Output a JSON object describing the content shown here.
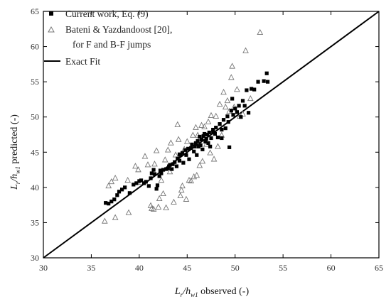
{
  "chart_data": {
    "type": "scatter",
    "xlabel": {
      "main": "L",
      "main_sub": "r",
      "denom": "/h",
      "denom_sub": "w1",
      "rest": " observed (-)"
    },
    "ylabel": {
      "main": "L",
      "main_sub": "r",
      "denom": "/h",
      "denom_sub": "w1",
      "rest": " predicted (-)"
    },
    "xlim": [
      30,
      65
    ],
    "ylim": [
      30,
      65
    ],
    "xticks": [
      30,
      35,
      40,
      45,
      50,
      55,
      60,
      65
    ],
    "yticks": [
      30,
      35,
      40,
      45,
      50,
      55,
      60,
      65
    ],
    "grid": false,
    "legend_position": "top-left",
    "series": [
      {
        "name": "Current work, Eq. (9)",
        "marker": "filled-square",
        "color": "#000000",
        "points": [
          [
            36.5,
            37.8
          ],
          [
            36.8,
            37.7
          ],
          [
            37.1,
            38.0
          ],
          [
            37.4,
            38.3
          ],
          [
            37.7,
            38.9
          ],
          [
            37.9,
            39.4
          ],
          [
            38.2,
            39.7
          ],
          [
            38.5,
            40.0
          ],
          [
            39.0,
            39.2
          ],
          [
            39.4,
            40.4
          ],
          [
            39.7,
            40.6
          ],
          [
            40.0,
            40.9
          ],
          [
            40.2,
            41.0
          ],
          [
            40.5,
            40.6
          ],
          [
            40.7,
            40.8
          ],
          [
            41.0,
            40.2
          ],
          [
            41.2,
            41.3
          ],
          [
            41.3,
            42.0
          ],
          [
            41.5,
            42.5
          ],
          [
            41.6,
            41.9
          ],
          [
            41.8,
            39.8
          ],
          [
            41.9,
            40.3
          ],
          [
            42.1,
            41.6
          ],
          [
            42.3,
            42.0
          ],
          [
            42.5,
            42.5
          ],
          [
            42.8,
            42.6
          ],
          [
            43.0,
            42.7
          ],
          [
            43.1,
            43.0
          ],
          [
            43.4,
            42.6
          ],
          [
            43.5,
            43.3
          ],
          [
            43.7,
            43.6
          ],
          [
            43.9,
            43.0
          ],
          [
            44.0,
            44.1
          ],
          [
            44.2,
            43.8
          ],
          [
            44.3,
            44.6
          ],
          [
            44.5,
            44.9
          ],
          [
            44.6,
            43.5
          ],
          [
            44.8,
            45.3
          ],
          [
            44.9,
            44.6
          ],
          [
            45.1,
            45.5
          ],
          [
            45.2,
            44.0
          ],
          [
            45.4,
            45.6
          ],
          [
            45.5,
            46.1
          ],
          [
            45.7,
            45.1
          ],
          [
            45.8,
            45.8
          ],
          [
            45.9,
            46.3
          ],
          [
            46.0,
            44.6
          ],
          [
            46.1,
            46.6
          ],
          [
            46.2,
            45.8
          ],
          [
            46.3,
            47.2
          ],
          [
            46.4,
            46.0
          ],
          [
            46.5,
            46.8
          ],
          [
            46.6,
            45.4
          ],
          [
            46.7,
            47.3
          ],
          [
            46.8,
            47.6
          ],
          [
            46.9,
            46.5
          ],
          [
            47.0,
            46.9
          ],
          [
            47.1,
            47.5
          ],
          [
            47.2,
            46.3
          ],
          [
            47.3,
            47.8
          ],
          [
            47.4,
            45.8
          ],
          [
            47.5,
            47.0
          ],
          [
            47.7,
            48.2
          ],
          [
            47.9,
            47.6
          ],
          [
            48.0,
            48.5
          ],
          [
            48.2,
            47.1
          ],
          [
            48.4,
            49.0
          ],
          [
            48.6,
            48.2
          ],
          [
            48.8,
            49.6
          ],
          [
            49.0,
            48.4
          ],
          [
            49.2,
            50.1
          ],
          [
            49.3,
            49.3
          ],
          [
            49.4,
            45.7
          ],
          [
            49.6,
            50.9
          ],
          [
            49.8,
            50.3
          ],
          [
            50.0,
            51.2
          ],
          [
            50.2,
            50.7
          ],
          [
            50.4,
            51.6
          ],
          [
            50.6,
            50.0
          ],
          [
            50.8,
            52.3
          ],
          [
            51.0,
            51.6
          ],
          [
            51.2,
            53.8
          ],
          [
            51.4,
            50.6
          ],
          [
            51.7,
            54.0
          ],
          [
            52.0,
            53.9
          ],
          [
            52.4,
            55.0
          ],
          [
            53.0,
            55.1
          ],
          [
            53.3,
            56.2
          ],
          [
            53.4,
            55.0
          ],
          [
            49.7,
            52.6
          ],
          [
            48.6,
            47.0
          ],
          [
            47.7,
            47.9
          ],
          [
            44.2,
            44.7
          ],
          [
            43.2,
            43.2
          ],
          [
            42.2,
            42.4
          ]
        ]
      },
      {
        "name": "Bateni & Yazdandoost [20],",
        "name_line2": "for F and B-F jumps",
        "marker": "open-triangle",
        "color": "#777777",
        "points": [
          [
            36.4,
            35.2
          ],
          [
            36.8,
            40.2
          ],
          [
            37.1,
            40.8
          ],
          [
            37.5,
            41.3
          ],
          [
            37.5,
            35.7
          ],
          [
            38.8,
            41.0
          ],
          [
            38.9,
            36.4
          ],
          [
            39.6,
            43.0
          ],
          [
            39.9,
            42.5
          ],
          [
            40.2,
            40.7
          ],
          [
            40.6,
            44.4
          ],
          [
            40.9,
            43.2
          ],
          [
            41.2,
            37.4
          ],
          [
            41.3,
            37.0
          ],
          [
            41.5,
            36.9
          ],
          [
            41.6,
            43.3
          ],
          [
            41.8,
            45.2
          ],
          [
            42.0,
            37.2
          ],
          [
            42.1,
            38.4
          ],
          [
            42.3,
            41.0
          ],
          [
            42.5,
            39.1
          ],
          [
            42.7,
            43.9
          ],
          [
            42.8,
            37.1
          ],
          [
            43.0,
            45.3
          ],
          [
            43.2,
            42.2
          ],
          [
            43.3,
            46.3
          ],
          [
            43.6,
            37.9
          ],
          [
            43.8,
            44.6
          ],
          [
            44.0,
            48.9
          ],
          [
            44.1,
            46.8
          ],
          [
            44.3,
            38.8
          ],
          [
            44.4,
            39.6
          ],
          [
            44.5,
            40.2
          ],
          [
            44.7,
            45.4
          ],
          [
            44.9,
            38.3
          ],
          [
            45.0,
            46.5
          ],
          [
            45.2,
            41.0
          ],
          [
            45.4,
            40.9
          ],
          [
            45.6,
            47.4
          ],
          [
            45.7,
            41.5
          ],
          [
            45.9,
            48.5
          ],
          [
            46.0,
            41.7
          ],
          [
            46.1,
            47.4
          ],
          [
            46.3,
            43.1
          ],
          [
            46.5,
            48.8
          ],
          [
            46.6,
            43.7
          ],
          [
            46.8,
            48.6
          ],
          [
            47.0,
            46.1
          ],
          [
            47.2,
            49.3
          ],
          [
            47.4,
            44.9
          ],
          [
            47.5,
            50.2
          ],
          [
            47.8,
            44.0
          ],
          [
            48.0,
            50.1
          ],
          [
            48.2,
            45.8
          ],
          [
            48.4,
            51.8
          ],
          [
            48.6,
            47.4
          ],
          [
            48.8,
            53.5
          ],
          [
            49.0,
            51.4
          ],
          [
            49.2,
            52.3
          ],
          [
            49.4,
            50.8
          ],
          [
            49.6,
            55.6
          ],
          [
            49.7,
            57.2
          ],
          [
            49.9,
            51.4
          ],
          [
            50.2,
            53.9
          ],
          [
            50.5,
            50.1
          ],
          [
            50.8,
            50.4
          ],
          [
            51.1,
            59.4
          ],
          [
            51.6,
            52.6
          ],
          [
            52.6,
            62.0
          ]
        ]
      }
    ],
    "reference_line": {
      "name": "Exact Fit",
      "from": [
        30,
        30
      ],
      "to": [
        65,
        65
      ],
      "color": "#000000"
    }
  }
}
